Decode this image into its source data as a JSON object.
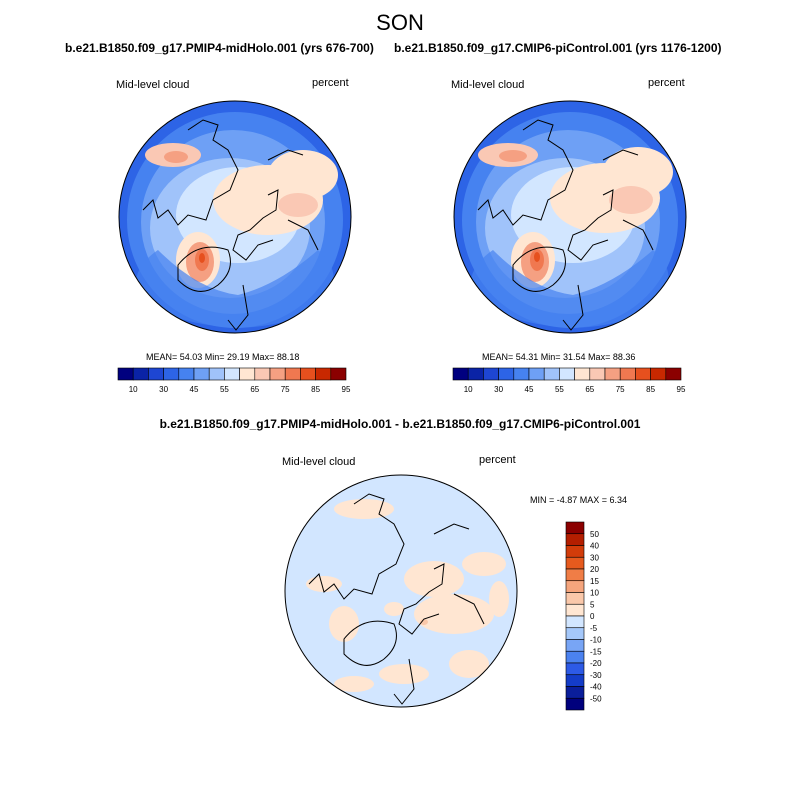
{
  "season": "SON",
  "panels": [
    {
      "title": "b.e21.B1850.f09_g17.PMIP4-midHolo.001 (yrs 676-700)",
      "variable": "Mid-level cloud",
      "units": "percent",
      "stats_label": "MEAN=  54.03  Min=  29.19  Max=  88.18",
      "mean": 54.03,
      "min": 29.19,
      "max": 88.18
    },
    {
      "title": "b.e21.B1850.f09_g17.CMIP6-piControl.001 (yrs 1176-1200)",
      "variable": "Mid-level cloud",
      "units": "percent",
      "stats_label": "MEAN=  54.31  Min=  31.54  Max=  88.36",
      "mean": 54.31,
      "min": 31.54,
      "max": 88.36
    }
  ],
  "colorbar_top": {
    "tick_labels": [
      "10",
      "30",
      "45",
      "55",
      "65",
      "75",
      "85",
      "95"
    ],
    "colors": [
      "#00007f",
      "#0a23a6",
      "#1e46d2",
      "#2d64e6",
      "#4682f0",
      "#6ea0f5",
      "#a0c3fa",
      "#d2e6ff",
      "#ffe6d2",
      "#fac8b4",
      "#f5a082",
      "#f07850",
      "#e6501e",
      "#c82800",
      "#8b0000"
    ]
  },
  "diff": {
    "title": "b.e21.B1850.f09_g17.PMIP4-midHolo.001 - b.e21.B1850.f09_g17.CMIP6-piControl.001",
    "variable": "Mid-level cloud",
    "units": "percent",
    "minmax_label": "MIN =  -4.87 MAX =   6.34",
    "min": -4.87,
    "max": 6.34,
    "colorbar": {
      "levels": [
        "50",
        "40",
        "30",
        "20",
        "15",
        "10",
        "5",
        "0",
        "-5",
        "-10",
        "-15",
        "-20",
        "-30",
        "-40",
        "-50"
      ],
      "colors": [
        "#8b0000",
        "#b41e00",
        "#d23c0a",
        "#e65a1e",
        "#f07d46",
        "#f5a57d",
        "#fac8aa",
        "#ffe6d2",
        "#d2e6ff",
        "#a5c8fa",
        "#78a5f5",
        "#4b82f0",
        "#2d5ae6",
        "#143cc8",
        "#0a1e9b",
        "#00007d"
      ]
    }
  }
}
